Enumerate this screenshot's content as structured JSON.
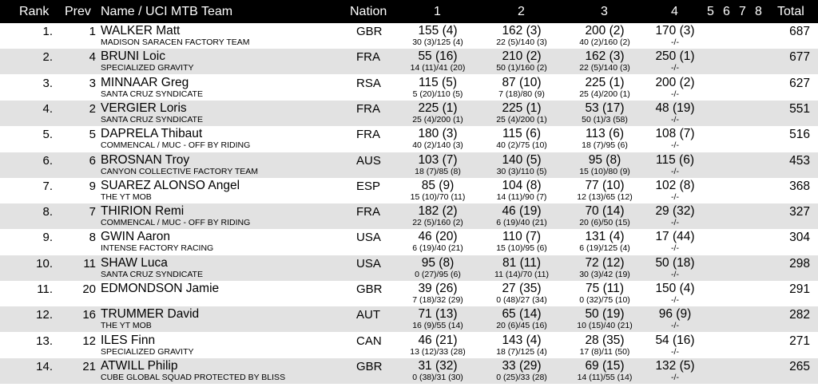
{
  "header": {
    "rank": "Rank",
    "prev": "Prev",
    "name": "Name / UCI MTB Team",
    "nation": "Nation",
    "r1": "1",
    "r2": "2",
    "r3": "3",
    "r4": "4",
    "r5": "5",
    "r6": "6",
    "r7": "7",
    "r8": "8",
    "total": "Total"
  },
  "rows": [
    {
      "rank": "1.",
      "prev": "1",
      "name": "WALKER Matt",
      "team": "MADISON SARACEN FACTORY TEAM",
      "nation": "GBR",
      "r1": "155 (4)",
      "r1s": "30 (3)/125 (4)",
      "r2": "162 (3)",
      "r2s": "22 (5)/140 (3)",
      "r3": "200 (2)",
      "r3s": "40 (2)/160 (2)",
      "r4": "170 (3)",
      "r4s": "-/-",
      "total": "687"
    },
    {
      "rank": "2.",
      "prev": "4",
      "name": "BRUNI Loic",
      "team": "SPECIALIZED GRAVITY",
      "nation": "FRA",
      "r1": "55 (16)",
      "r1s": "14 (11)/41 (20)",
      "r2": "210 (2)",
      "r2s": "50 (1)/160 (2)",
      "r3": "162 (3)",
      "r3s": "22 (5)/140 (3)",
      "r4": "250 (1)",
      "r4s": "-/-",
      "total": "677"
    },
    {
      "rank": "3.",
      "prev": "3",
      "name": "MINNAAR Greg",
      "team": "SANTA CRUZ SYNDICATE",
      "nation": "RSA",
      "r1": "115 (5)",
      "r1s": "5 (20)/110 (5)",
      "r2": "87 (10)",
      "r2s": "7 (18)/80 (9)",
      "r3": "225 (1)",
      "r3s": "25 (4)/200 (1)",
      "r4": "200 (2)",
      "r4s": "-/-",
      "total": "627"
    },
    {
      "rank": "4.",
      "prev": "2",
      "name": "VERGIER Loris",
      "team": "SANTA CRUZ SYNDICATE",
      "nation": "FRA",
      "r1": "225 (1)",
      "r1s": "25 (4)/200 (1)",
      "r2": "225 (1)",
      "r2s": "25 (4)/200 (1)",
      "r3": "53 (17)",
      "r3s": "50 (1)/3 (58)",
      "r4": "48 (19)",
      "r4s": "-/-",
      "total": "551"
    },
    {
      "rank": "5.",
      "prev": "5",
      "name": "DAPRELA Thibaut",
      "team": "COMMENCAL / MUC - OFF BY RIDING",
      "nation": "FRA",
      "r1": "180 (3)",
      "r1s": "40 (2)/140 (3)",
      "r2": "115 (6)",
      "r2s": "40 (2)/75 (10)",
      "r3": "113 (6)",
      "r3s": "18 (7)/95 (6)",
      "r4": "108 (7)",
      "r4s": "-/-",
      "total": "516"
    },
    {
      "rank": "6.",
      "prev": "6",
      "name": "BROSNAN Troy",
      "team": "CANYON COLLECTIVE FACTORY TEAM",
      "nation": "AUS",
      "r1": "103 (7)",
      "r1s": "18 (7)/85 (8)",
      "r2": "140 (5)",
      "r2s": "30 (3)/110 (5)",
      "r3": "95 (8)",
      "r3s": "15 (10)/80 (9)",
      "r4": "115 (6)",
      "r4s": "-/-",
      "total": "453"
    },
    {
      "rank": "7.",
      "prev": "9",
      "name": "SUAREZ ALONSO Angel",
      "team": "THE YT MOB",
      "nation": "ESP",
      "r1": "85 (9)",
      "r1s": "15 (10)/70 (11)",
      "r2": "104 (8)",
      "r2s": "14 (11)/90 (7)",
      "r3": "77 (10)",
      "r3s": "12 (13)/65 (12)",
      "r4": "102 (8)",
      "r4s": "-/-",
      "total": "368"
    },
    {
      "rank": "8.",
      "prev": "7",
      "name": "THIRION Remi",
      "team": "COMMENCAL / MUC - OFF BY RIDING",
      "nation": "FRA",
      "r1": "182 (2)",
      "r1s": "22 (5)/160 (2)",
      "r2": "46 (19)",
      "r2s": "6 (19)/40 (21)",
      "r3": "70 (14)",
      "r3s": "20 (6)/50 (15)",
      "r4": "29 (32)",
      "r4s": "-/-",
      "total": "327"
    },
    {
      "rank": "9.",
      "prev": "8",
      "name": "GWIN Aaron",
      "team": "INTENSE FACTORY RACING",
      "nation": "USA",
      "r1": "46 (20)",
      "r1s": "6 (19)/40 (21)",
      "r2": "110 (7)",
      "r2s": "15 (10)/95 (6)",
      "r3": "131 (4)",
      "r3s": "6 (19)/125 (4)",
      "r4": "17 (44)",
      "r4s": "-/-",
      "total": "304"
    },
    {
      "rank": "10.",
      "prev": "11",
      "name": "SHAW Luca",
      "team": "SANTA CRUZ SYNDICATE",
      "nation": "USA",
      "r1": "95 (8)",
      "r1s": "0 (27)/95 (6)",
      "r2": "81 (11)",
      "r2s": "11 (14)/70 (11)",
      "r3": "72 (12)",
      "r3s": "30 (3)/42 (19)",
      "r4": "50 (18)",
      "r4s": "-/-",
      "total": "298"
    },
    {
      "rank": "11.",
      "prev": "20",
      "name": "EDMONDSON Jamie",
      "team": "",
      "nation": "GBR",
      "r1": "39 (26)",
      "r1s": "7 (18)/32 (29)",
      "r2": "27 (35)",
      "r2s": "0 (48)/27 (34)",
      "r3": "75 (11)",
      "r3s": "0 (32)/75 (10)",
      "r4": "150 (4)",
      "r4s": "-/-",
      "total": "291"
    },
    {
      "rank": "12.",
      "prev": "16",
      "name": "TRUMMER David",
      "team": "THE YT MOB",
      "nation": "AUT",
      "r1": "71 (13)",
      "r1s": "16 (9)/55 (14)",
      "r2": "65 (14)",
      "r2s": "20 (6)/45 (16)",
      "r3": "50 (19)",
      "r3s": "10 (15)/40 (21)",
      "r4": "96 (9)",
      "r4s": "-/-",
      "total": "282"
    },
    {
      "rank": "13.",
      "prev": "12",
      "name": "ILES Finn",
      "team": "SPECIALIZED GRAVITY",
      "nation": "CAN",
      "r1": "46 (21)",
      "r1s": "13 (12)/33 (28)",
      "r2": "143 (4)",
      "r2s": "18 (7)/125 (4)",
      "r3": "28 (35)",
      "r3s": "17 (8)/11 (50)",
      "r4": "54 (16)",
      "r4s": "-/-",
      "total": "271"
    },
    {
      "rank": "14.",
      "prev": "21",
      "name": "ATWILL Philip",
      "team": "CUBE GLOBAL SQUAD PROTECTED BY BLISS",
      "nation": "GBR",
      "r1": "31 (32)",
      "r1s": "0 (38)/31 (30)",
      "r2": "33 (29)",
      "r2s": "0 (25)/33 (28)",
      "r3": "69 (15)",
      "r3s": "14 (11)/55 (14)",
      "r4": "132 (5)",
      "r4s": "-/-",
      "total": "265"
    }
  ]
}
